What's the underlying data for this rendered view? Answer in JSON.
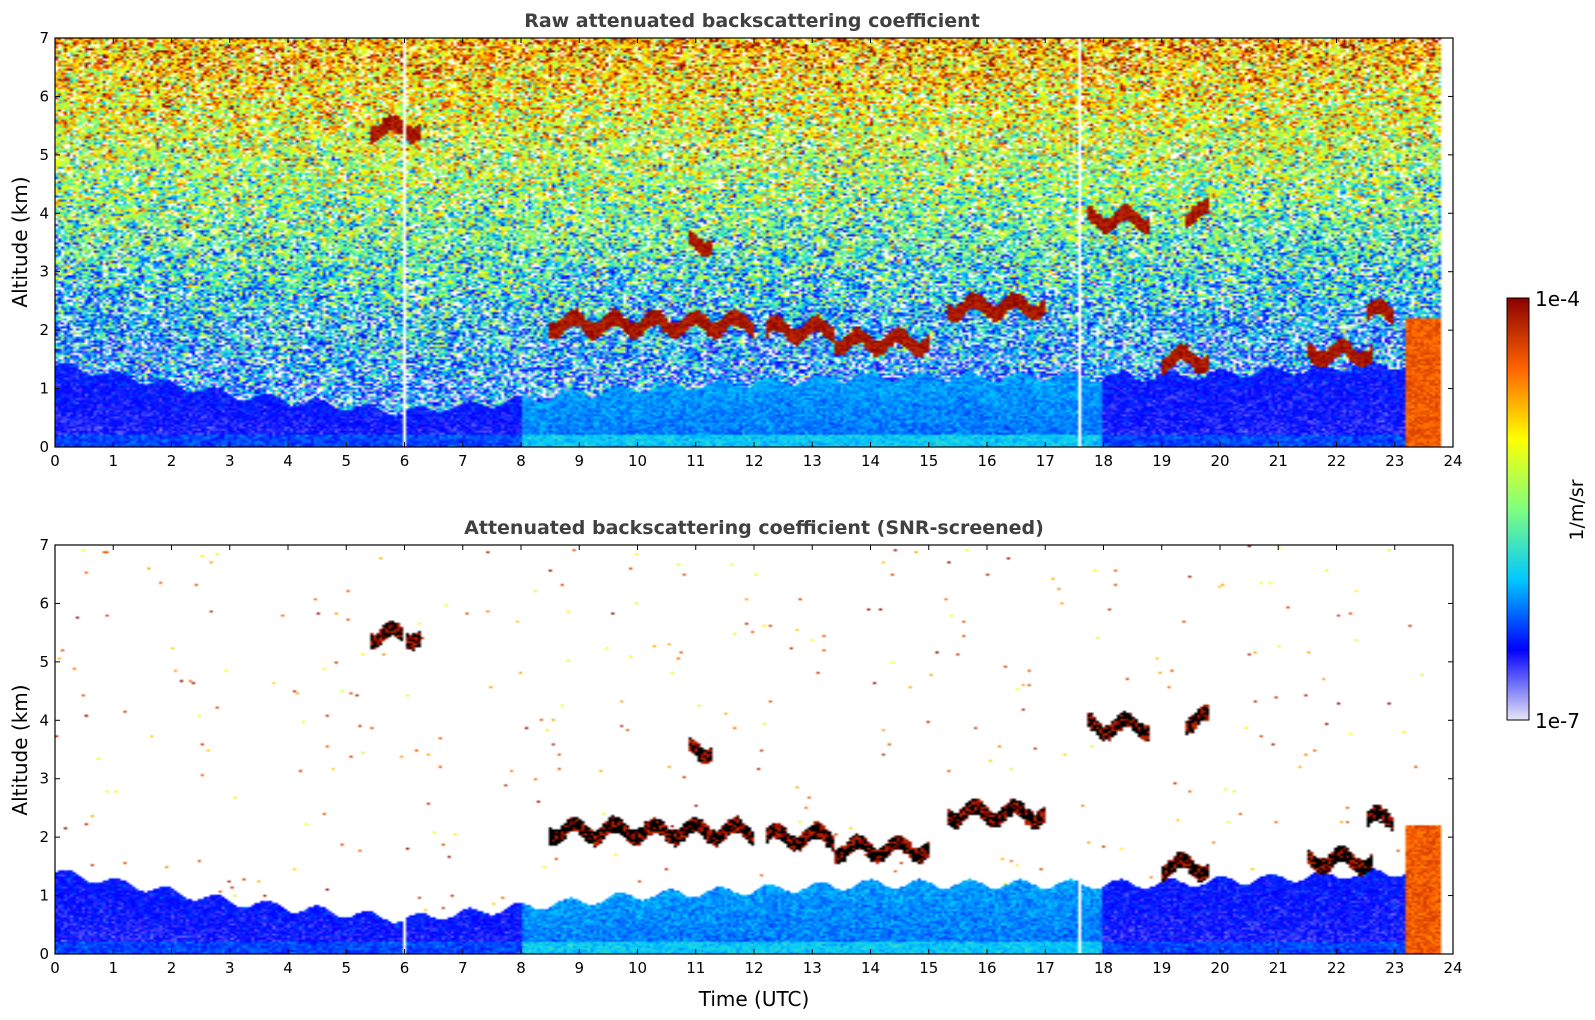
{
  "figure": {
    "colorbar": {
      "label": "1/m/sr",
      "max_label": "1e-4",
      "min_label": "1e-7",
      "scale": "log",
      "range": [
        1e-07,
        0.0001
      ],
      "colormap": "jet",
      "colors": [
        "#e6e6f5",
        "#0000ff",
        "#00c8ff",
        "#80ff80",
        "#ffff00",
        "#ff6400",
        "#8b0000"
      ]
    },
    "black_color": "#000000",
    "missing_color": "#ffffff"
  },
  "chart_data": [
    {
      "type": "heatmap",
      "title": "Raw attenuated backscattering coefficient",
      "xlabel": "",
      "ylabel": "Altitude (km)",
      "xlim": [
        0,
        24
      ],
      "ylim": [
        0,
        7
      ],
      "x_ticks": [
        "0",
        "1",
        "2",
        "3",
        "4",
        "5",
        "6",
        "7",
        "8",
        "9",
        "10",
        "11",
        "12",
        "13",
        "14",
        "15",
        "16",
        "17",
        "18",
        "19",
        "20",
        "21",
        "22",
        "23",
        "24"
      ],
      "y_ticks": [
        "0",
        "1",
        "2",
        "3",
        "4",
        "5",
        "6",
        "7"
      ],
      "data_end_x": 23.8,
      "data_gaps_x": [
        6.0,
        17.6
      ],
      "boundary_layer_top_km": [
        [
          0,
          1.4
        ],
        [
          3,
          0.9
        ],
        [
          6,
          0.6
        ],
        [
          8,
          0.8
        ],
        [
          10,
          1.0
        ],
        [
          14,
          1.2
        ],
        [
          17,
          1.2
        ],
        [
          19,
          1.2
        ],
        [
          21,
          1.3
        ],
        [
          23,
          1.4
        ],
        [
          23.8,
          1.4
        ]
      ],
      "cloud_layers": [
        {
          "x": [
            5.4,
            6.3
          ],
          "altitude": 5.45
        },
        {
          "x": [
            10.9,
            11.3
          ],
          "altitude": 3.5
        },
        {
          "x": [
            8.5,
            12.0
          ],
          "altitude": 2.1
        },
        {
          "x": [
            12.2,
            13.4
          ],
          "altitude": 2.0
        },
        {
          "x": [
            13.4,
            15.0
          ],
          "altitude": 1.8
        },
        {
          "x": [
            15.3,
            17.0
          ],
          "altitude": 2.4
        },
        {
          "x": [
            17.7,
            18.8
          ],
          "altitude": 3.9
        },
        {
          "x": [
            19.0,
            19.8
          ],
          "altitude": 1.5
        },
        {
          "x": [
            19.4,
            19.8
          ],
          "altitude": 4.0
        },
        {
          "x": [
            21.5,
            22.6
          ],
          "altitude": 1.6
        },
        {
          "x": [
            22.5,
            23.0
          ],
          "altitude": 2.3
        },
        {
          "x": [
            23.2,
            23.8
          ],
          "altitude": 1.2
        }
      ]
    },
    {
      "type": "heatmap",
      "title": "Attenuated backscattering coefficient (SNR-screened)",
      "xlabel": "Time (UTC)",
      "ylabel": "Altitude (km)",
      "xlim": [
        0,
        24
      ],
      "ylim": [
        0,
        7
      ],
      "x_ticks": [
        "0",
        "1",
        "2",
        "3",
        "4",
        "5",
        "6",
        "7",
        "8",
        "9",
        "10",
        "11",
        "12",
        "13",
        "14",
        "15",
        "16",
        "17",
        "18",
        "19",
        "20",
        "21",
        "22",
        "23",
        "24"
      ],
      "y_ticks": [
        "0",
        "1",
        "2",
        "3",
        "4",
        "5",
        "6",
        "7"
      ],
      "data_end_x": 23.8,
      "data_gaps_x": [
        6.0,
        17.6
      ],
      "boundary_layer_top_km": [
        [
          0,
          1.4
        ],
        [
          3,
          0.9
        ],
        [
          6,
          0.6
        ],
        [
          8,
          0.8
        ],
        [
          10,
          1.0
        ],
        [
          14,
          1.2
        ],
        [
          17,
          1.2
        ],
        [
          19,
          1.2
        ],
        [
          21,
          1.3
        ],
        [
          23,
          1.4
        ],
        [
          23.8,
          1.4
        ]
      ],
      "cloud_layers": [
        {
          "x": [
            5.4,
            6.3
          ],
          "altitude": 5.45
        },
        {
          "x": [
            10.9,
            11.3
          ],
          "altitude": 3.5
        },
        {
          "x": [
            8.5,
            12.0
          ],
          "altitude": 2.1
        },
        {
          "x": [
            12.2,
            13.4
          ],
          "altitude": 2.0
        },
        {
          "x": [
            13.4,
            15.0
          ],
          "altitude": 1.8
        },
        {
          "x": [
            15.3,
            17.0
          ],
          "altitude": 2.4
        },
        {
          "x": [
            17.7,
            18.8
          ],
          "altitude": 3.9
        },
        {
          "x": [
            19.0,
            19.8
          ],
          "altitude": 1.5
        },
        {
          "x": [
            19.4,
            19.8
          ],
          "altitude": 4.0
        },
        {
          "x": [
            21.5,
            22.6
          ],
          "altitude": 1.6
        },
        {
          "x": [
            22.5,
            23.0
          ],
          "altitude": 2.3
        },
        {
          "x": [
            23.2,
            23.8
          ],
          "altitude": 1.2
        }
      ]
    }
  ]
}
